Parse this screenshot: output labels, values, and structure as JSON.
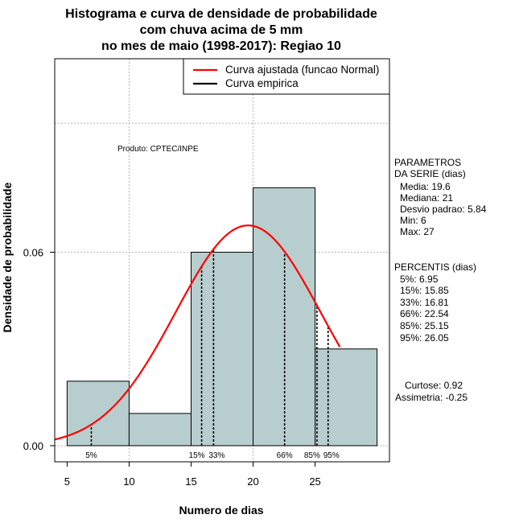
{
  "chart_data": {
    "type": "bar",
    "title": [
      "Histograma e curva de densidade de probabilidade",
      "com chuva acima de 5 mm",
      "no mes de maio (1998-2017): Regiao 10"
    ],
    "xlabel": "Numero de dias",
    "ylabel": "Densidade de probabilidade",
    "xlim": [
      4,
      31
    ],
    "ylim": [
      -0.005,
      0.12
    ],
    "x_ticks": [
      {
        "value": 5,
        "label": "5"
      },
      {
        "value": 10,
        "label": "10"
      },
      {
        "value": 15,
        "label": "15"
      },
      {
        "value": 20,
        "label": "20"
      },
      {
        "value": 25,
        "label": "25"
      }
    ],
    "y_ticks": [
      {
        "value": 0,
        "label": "0.00"
      },
      {
        "value": 0.06,
        "label": "0.06"
      }
    ],
    "grid_x": [
      10,
      20
    ],
    "grid_y": [
      0.06,
      0.1
    ],
    "bins": [
      {
        "from": 5,
        "to": 10,
        "density": 0.02
      },
      {
        "from": 10,
        "to": 15,
        "density": 0.01
      },
      {
        "from": 15,
        "to": 20,
        "density": 0.06
      },
      {
        "from": 20,
        "to": 25,
        "density": 0.08
      },
      {
        "from": 25,
        "to": 30,
        "density": 0.03
      }
    ],
    "bar_color": "#b8cece",
    "curve": {
      "mean": 19.6,
      "sd": 5.84,
      "x_from": 4,
      "x_to": 27,
      "color": "#ff0000"
    },
    "percentiles": [
      {
        "x": 6.95,
        "label": "5%"
      },
      {
        "x": 15.85,
        "label": "15%"
      },
      {
        "x": 16.81,
        "label": "33%"
      },
      {
        "x": 22.54,
        "label": "66%"
      },
      {
        "x": 25.15,
        "label": "85%"
      },
      {
        "x": 26.05,
        "label": "95%"
      }
    ],
    "legend": {
      "position": "top-right",
      "entries": [
        {
          "label": "Curva ajustada (funcao Normal)",
          "color": "#ff0000"
        },
        {
          "label": "Curva empirica",
          "color": "#000000"
        }
      ]
    },
    "annotation": "Produto: CPTEC/INPE",
    "parametros": {
      "header": [
        "PARAMETROS",
        "DA SERIE (dias)"
      ],
      "lines": [
        "Media: 19.6",
        "Mediana: 21",
        "Desvio padrao: 5.84",
        "Min: 6",
        "Max: 27"
      ]
    },
    "percentis": {
      "header": "PERCENTIS (dias)",
      "lines": [
        "5%: 6.95",
        "15%: 15.85",
        "33%: 16.81",
        "66%: 22.54",
        "85%: 25.15",
        "95%: 26.05"
      ]
    },
    "shape": {
      "lines": [
        "Curtose: 0.92",
        "Assimetria: -0.25"
      ]
    }
  }
}
